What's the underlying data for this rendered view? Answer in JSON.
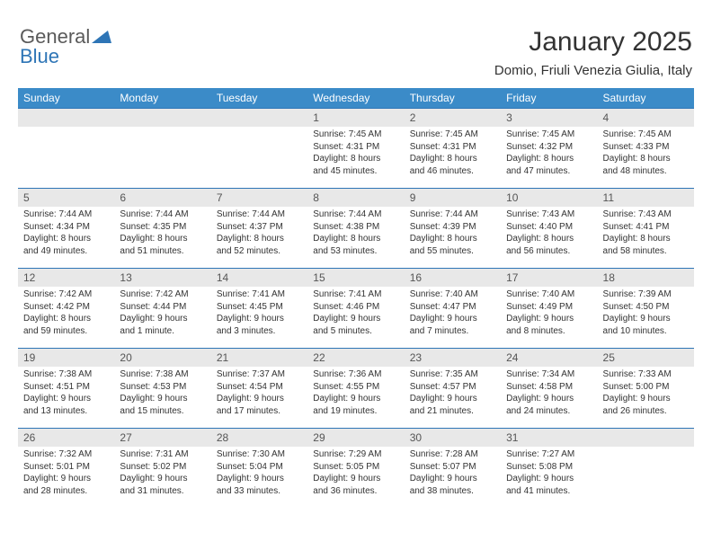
{
  "logo": {
    "part1": "General",
    "part2": "Blue"
  },
  "header": {
    "title": "January 2025",
    "location": "Domio, Friuli Venezia Giulia, Italy"
  },
  "colors": {
    "header_bg": "#3b8bc8",
    "header_text": "#ffffff",
    "rule": "#2e75b6",
    "daynum_bg": "#e8e8e8",
    "text": "#333333",
    "logo_gray": "#5a5a5a",
    "logo_blue": "#2e75b6"
  },
  "days_of_week": [
    "Sunday",
    "Monday",
    "Tuesday",
    "Wednesday",
    "Thursday",
    "Friday",
    "Saturday"
  ],
  "weeks": [
    [
      {
        "blank": true
      },
      {
        "blank": true
      },
      {
        "blank": true
      },
      {
        "n": "1",
        "sr": "7:45 AM",
        "ss": "4:31 PM",
        "dl": "8 hours and 45 minutes."
      },
      {
        "n": "2",
        "sr": "7:45 AM",
        "ss": "4:31 PM",
        "dl": "8 hours and 46 minutes."
      },
      {
        "n": "3",
        "sr": "7:45 AM",
        "ss": "4:32 PM",
        "dl": "8 hours and 47 minutes."
      },
      {
        "n": "4",
        "sr": "7:45 AM",
        "ss": "4:33 PM",
        "dl": "8 hours and 48 minutes."
      }
    ],
    [
      {
        "n": "5",
        "sr": "7:44 AM",
        "ss": "4:34 PM",
        "dl": "8 hours and 49 minutes."
      },
      {
        "n": "6",
        "sr": "7:44 AM",
        "ss": "4:35 PM",
        "dl": "8 hours and 51 minutes."
      },
      {
        "n": "7",
        "sr": "7:44 AM",
        "ss": "4:37 PM",
        "dl": "8 hours and 52 minutes."
      },
      {
        "n": "8",
        "sr": "7:44 AM",
        "ss": "4:38 PM",
        "dl": "8 hours and 53 minutes."
      },
      {
        "n": "9",
        "sr": "7:44 AM",
        "ss": "4:39 PM",
        "dl": "8 hours and 55 minutes."
      },
      {
        "n": "10",
        "sr": "7:43 AM",
        "ss": "4:40 PM",
        "dl": "8 hours and 56 minutes."
      },
      {
        "n": "11",
        "sr": "7:43 AM",
        "ss": "4:41 PM",
        "dl": "8 hours and 58 minutes."
      }
    ],
    [
      {
        "n": "12",
        "sr": "7:42 AM",
        "ss": "4:42 PM",
        "dl": "8 hours and 59 minutes."
      },
      {
        "n": "13",
        "sr": "7:42 AM",
        "ss": "4:44 PM",
        "dl": "9 hours and 1 minute."
      },
      {
        "n": "14",
        "sr": "7:41 AM",
        "ss": "4:45 PM",
        "dl": "9 hours and 3 minutes."
      },
      {
        "n": "15",
        "sr": "7:41 AM",
        "ss": "4:46 PM",
        "dl": "9 hours and 5 minutes."
      },
      {
        "n": "16",
        "sr": "7:40 AM",
        "ss": "4:47 PM",
        "dl": "9 hours and 7 minutes."
      },
      {
        "n": "17",
        "sr": "7:40 AM",
        "ss": "4:49 PM",
        "dl": "9 hours and 8 minutes."
      },
      {
        "n": "18",
        "sr": "7:39 AM",
        "ss": "4:50 PM",
        "dl": "9 hours and 10 minutes."
      }
    ],
    [
      {
        "n": "19",
        "sr": "7:38 AM",
        "ss": "4:51 PM",
        "dl": "9 hours and 13 minutes."
      },
      {
        "n": "20",
        "sr": "7:38 AM",
        "ss": "4:53 PM",
        "dl": "9 hours and 15 minutes."
      },
      {
        "n": "21",
        "sr": "7:37 AM",
        "ss": "4:54 PM",
        "dl": "9 hours and 17 minutes."
      },
      {
        "n": "22",
        "sr": "7:36 AM",
        "ss": "4:55 PM",
        "dl": "9 hours and 19 minutes."
      },
      {
        "n": "23",
        "sr": "7:35 AM",
        "ss": "4:57 PM",
        "dl": "9 hours and 21 minutes."
      },
      {
        "n": "24",
        "sr": "7:34 AM",
        "ss": "4:58 PM",
        "dl": "9 hours and 24 minutes."
      },
      {
        "n": "25",
        "sr": "7:33 AM",
        "ss": "5:00 PM",
        "dl": "9 hours and 26 minutes."
      }
    ],
    [
      {
        "n": "26",
        "sr": "7:32 AM",
        "ss": "5:01 PM",
        "dl": "9 hours and 28 minutes."
      },
      {
        "n": "27",
        "sr": "7:31 AM",
        "ss": "5:02 PM",
        "dl": "9 hours and 31 minutes."
      },
      {
        "n": "28",
        "sr": "7:30 AM",
        "ss": "5:04 PM",
        "dl": "9 hours and 33 minutes."
      },
      {
        "n": "29",
        "sr": "7:29 AM",
        "ss": "5:05 PM",
        "dl": "9 hours and 36 minutes."
      },
      {
        "n": "30",
        "sr": "7:28 AM",
        "ss": "5:07 PM",
        "dl": "9 hours and 38 minutes."
      },
      {
        "n": "31",
        "sr": "7:27 AM",
        "ss": "5:08 PM",
        "dl": "9 hours and 41 minutes."
      },
      {
        "blank": true
      }
    ]
  ],
  "labels": {
    "sunrise": "Sunrise: ",
    "sunset": "Sunset: ",
    "daylight": "Daylight: "
  }
}
